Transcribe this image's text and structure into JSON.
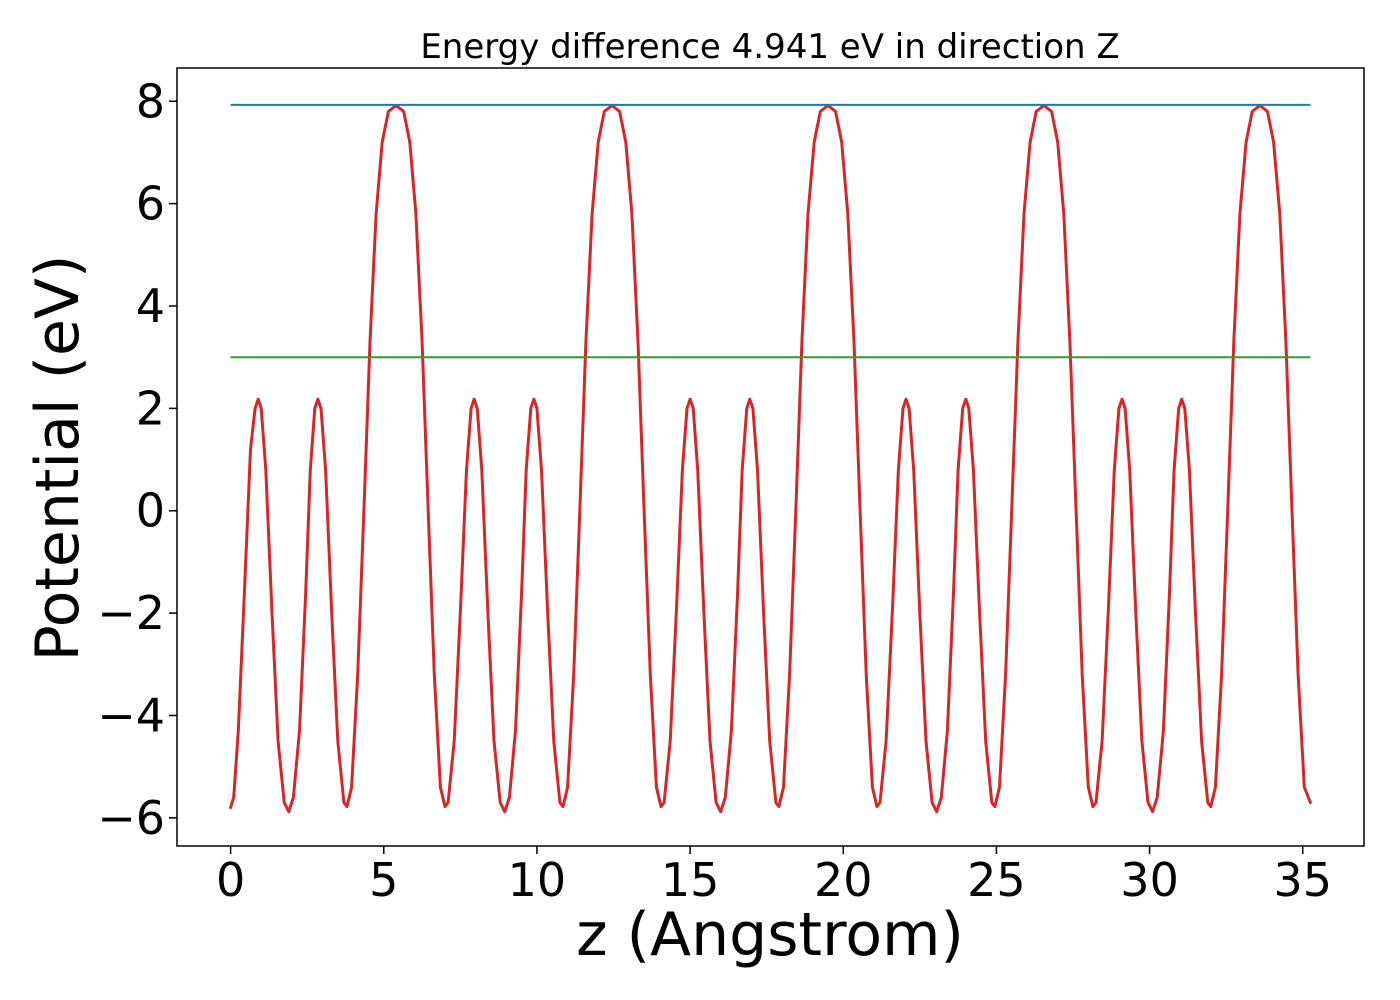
{
  "chart_data": {
    "type": "line",
    "title": "Energy difference 4.941 eV in direction Z",
    "xlabel": "z (Angstrom)",
    "ylabel": "Potential (eV)",
    "xlim": [
      -1.75,
      37.0
    ],
    "ylim": [
      -6.55,
      8.65
    ],
    "x_ticks": [
      0,
      5,
      10,
      15,
      20,
      25,
      30,
      35
    ],
    "x_tick_labels": [
      "0",
      "5",
      "10",
      "15",
      "20",
      "25",
      "30",
      "35"
    ],
    "y_ticks": [
      -6,
      -4,
      -2,
      0,
      2,
      4,
      6,
      8
    ],
    "y_tick_labels": [
      "−6",
      "−4",
      "−2",
      "0",
      "2",
      "4",
      "6",
      "8"
    ],
    "grid": false,
    "series": [
      {
        "color": "#d62728",
        "style": "line",
        "points": [
          [
            0.0,
            -5.8
          ],
          [
            0.1,
            -5.6
          ],
          [
            0.25,
            -4.3
          ],
          [
            0.45,
            -1.6
          ],
          [
            0.65,
            1.2
          ],
          [
            0.8,
            2.0
          ],
          [
            0.9,
            2.18
          ],
          [
            1.0,
            2.0
          ],
          [
            1.15,
            0.8
          ],
          [
            1.35,
            -2.0
          ],
          [
            1.55,
            -4.5
          ],
          [
            1.75,
            -5.7
          ],
          [
            1.9,
            -5.88
          ],
          [
            2.05,
            -5.6
          ],
          [
            2.25,
            -4.3
          ],
          [
            2.45,
            -1.6
          ],
          [
            2.6,
            0.8
          ],
          [
            2.75,
            2.0
          ],
          [
            2.85,
            2.18
          ],
          [
            2.95,
            2.0
          ],
          [
            3.1,
            0.8
          ],
          [
            3.3,
            -2.0
          ],
          [
            3.5,
            -4.5
          ],
          [
            3.7,
            -5.7
          ],
          [
            3.8,
            -5.78
          ],
          [
            3.95,
            -5.4
          ],
          [
            4.15,
            -3.2
          ],
          [
            4.35,
            0.0
          ],
          [
            4.55,
            3.3
          ],
          [
            4.75,
            5.8
          ],
          [
            4.95,
            7.2
          ],
          [
            5.15,
            7.8
          ],
          [
            5.4,
            7.92
          ],
          [
            5.65,
            7.8
          ],
          [
            5.85,
            7.2
          ],
          [
            6.05,
            5.8
          ],
          [
            6.25,
            3.3
          ],
          [
            6.45,
            0.0
          ],
          [
            6.65,
            -3.2
          ],
          [
            6.85,
            -5.4
          ],
          [
            7.0,
            -5.78
          ],
          [
            7.1,
            -5.7
          ],
          [
            7.3,
            -4.5
          ],
          [
            7.5,
            -2.0
          ],
          [
            7.7,
            0.8
          ],
          [
            7.85,
            2.0
          ],
          [
            7.95,
            2.18
          ],
          [
            8.05,
            2.0
          ],
          [
            8.2,
            0.8
          ],
          [
            8.4,
            -2.0
          ],
          [
            8.6,
            -4.5
          ],
          [
            8.8,
            -5.7
          ],
          [
            8.95,
            -5.88
          ],
          [
            9.1,
            -5.6
          ],
          [
            9.3,
            -4.3
          ],
          [
            9.5,
            -1.6
          ],
          [
            9.65,
            0.8
          ],
          [
            9.8,
            2.0
          ],
          [
            9.9,
            2.18
          ],
          [
            10.0,
            2.0
          ],
          [
            10.15,
            0.8
          ],
          [
            10.35,
            -2.0
          ],
          [
            10.55,
            -4.5
          ],
          [
            10.75,
            -5.7
          ],
          [
            10.85,
            -5.78
          ],
          [
            11.0,
            -5.4
          ],
          [
            11.2,
            -3.2
          ],
          [
            11.4,
            0.0
          ],
          [
            11.6,
            3.3
          ],
          [
            11.8,
            5.8
          ],
          [
            12.0,
            7.2
          ],
          [
            12.2,
            7.8
          ],
          [
            12.45,
            7.92
          ],
          [
            12.7,
            7.8
          ],
          [
            12.9,
            7.2
          ],
          [
            13.1,
            5.8
          ],
          [
            13.3,
            3.3
          ],
          [
            13.5,
            0.0
          ],
          [
            13.7,
            -3.2
          ],
          [
            13.9,
            -5.4
          ],
          [
            14.05,
            -5.78
          ],
          [
            14.15,
            -5.7
          ],
          [
            14.35,
            -4.5
          ],
          [
            14.55,
            -2.0
          ],
          [
            14.75,
            0.8
          ],
          [
            14.9,
            2.0
          ],
          [
            15.0,
            2.18
          ],
          [
            15.1,
            2.0
          ],
          [
            15.25,
            0.8
          ],
          [
            15.45,
            -2.0
          ],
          [
            15.65,
            -4.5
          ],
          [
            15.85,
            -5.7
          ],
          [
            16.0,
            -5.88
          ],
          [
            16.15,
            -5.6
          ],
          [
            16.35,
            -4.3
          ],
          [
            16.55,
            -1.6
          ],
          [
            16.7,
            0.8
          ],
          [
            16.85,
            2.0
          ],
          [
            16.95,
            2.18
          ],
          [
            17.05,
            2.0
          ],
          [
            17.2,
            0.8
          ],
          [
            17.4,
            -2.0
          ],
          [
            17.6,
            -4.5
          ],
          [
            17.8,
            -5.7
          ],
          [
            17.9,
            -5.78
          ],
          [
            18.05,
            -5.4
          ],
          [
            18.25,
            -3.2
          ],
          [
            18.45,
            0.0
          ],
          [
            18.65,
            3.3
          ],
          [
            18.85,
            5.8
          ],
          [
            19.05,
            7.2
          ],
          [
            19.25,
            7.8
          ],
          [
            19.5,
            7.92
          ],
          [
            19.75,
            7.8
          ],
          [
            19.95,
            7.2
          ],
          [
            20.15,
            5.8
          ],
          [
            20.35,
            3.3
          ],
          [
            20.55,
            0.0
          ],
          [
            20.75,
            -3.2
          ],
          [
            20.95,
            -5.4
          ],
          [
            21.1,
            -5.78
          ],
          [
            21.2,
            -5.7
          ],
          [
            21.4,
            -4.5
          ],
          [
            21.6,
            -2.0
          ],
          [
            21.8,
            0.8
          ],
          [
            21.95,
            2.0
          ],
          [
            22.05,
            2.18
          ],
          [
            22.15,
            2.0
          ],
          [
            22.3,
            0.8
          ],
          [
            22.5,
            -2.0
          ],
          [
            22.7,
            -4.5
          ],
          [
            22.9,
            -5.7
          ],
          [
            23.05,
            -5.88
          ],
          [
            23.2,
            -5.6
          ],
          [
            23.4,
            -4.3
          ],
          [
            23.6,
            -1.6
          ],
          [
            23.75,
            0.8
          ],
          [
            23.9,
            2.0
          ],
          [
            24.0,
            2.18
          ],
          [
            24.1,
            2.0
          ],
          [
            24.25,
            0.8
          ],
          [
            24.45,
            -2.0
          ],
          [
            24.65,
            -4.5
          ],
          [
            24.85,
            -5.7
          ],
          [
            24.95,
            -5.78
          ],
          [
            25.1,
            -5.4
          ],
          [
            25.3,
            -3.2
          ],
          [
            25.5,
            0.0
          ],
          [
            25.7,
            3.3
          ],
          [
            25.9,
            5.8
          ],
          [
            26.1,
            7.2
          ],
          [
            26.3,
            7.8
          ],
          [
            26.55,
            7.92
          ],
          [
            26.8,
            7.8
          ],
          [
            27.0,
            7.2
          ],
          [
            27.2,
            5.8
          ],
          [
            27.4,
            3.3
          ],
          [
            27.6,
            0.0
          ],
          [
            27.8,
            -3.2
          ],
          [
            28.0,
            -5.4
          ],
          [
            28.15,
            -5.78
          ],
          [
            28.25,
            -5.7
          ],
          [
            28.45,
            -4.5
          ],
          [
            28.65,
            -2.0
          ],
          [
            28.85,
            0.8
          ],
          [
            29.0,
            2.0
          ],
          [
            29.1,
            2.18
          ],
          [
            29.2,
            2.0
          ],
          [
            29.35,
            0.8
          ],
          [
            29.55,
            -2.0
          ],
          [
            29.75,
            -4.5
          ],
          [
            29.95,
            -5.7
          ],
          [
            30.1,
            -5.88
          ],
          [
            30.25,
            -5.6
          ],
          [
            30.45,
            -4.3
          ],
          [
            30.65,
            -1.6
          ],
          [
            30.8,
            0.8
          ],
          [
            30.95,
            2.0
          ],
          [
            31.05,
            2.18
          ],
          [
            31.15,
            2.0
          ],
          [
            31.3,
            0.8
          ],
          [
            31.5,
            -2.0
          ],
          [
            31.7,
            -4.5
          ],
          [
            31.9,
            -5.7
          ],
          [
            32.0,
            -5.78
          ],
          [
            32.15,
            -5.4
          ],
          [
            32.35,
            -3.2
          ],
          [
            32.55,
            0.0
          ],
          [
            32.75,
            3.3
          ],
          [
            32.95,
            5.8
          ],
          [
            33.15,
            7.2
          ],
          [
            33.35,
            7.8
          ],
          [
            33.6,
            7.92
          ],
          [
            33.85,
            7.8
          ],
          [
            34.05,
            7.2
          ],
          [
            34.25,
            5.8
          ],
          [
            34.45,
            3.3
          ],
          [
            34.65,
            0.0
          ],
          [
            34.85,
            -3.2
          ],
          [
            35.05,
            -5.4
          ],
          [
            35.25,
            -5.7
          ]
        ]
      },
      {
        "color": "#1f77b4",
        "style": "hline",
        "y": 7.93,
        "x_range": [
          0.0,
          35.25
        ]
      },
      {
        "color": "#2ca02c",
        "style": "hline",
        "y": 3.0,
        "x_range": [
          0.0,
          35.25
        ]
      }
    ]
  }
}
